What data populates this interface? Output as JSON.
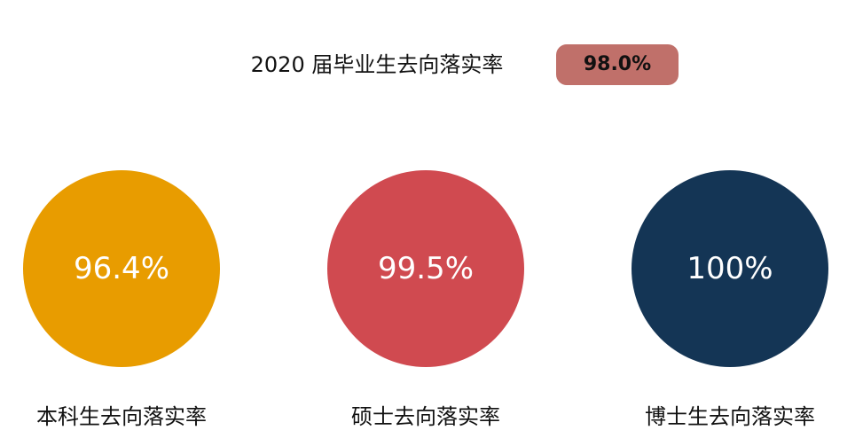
{
  "header": {
    "title": "2020 届毕业生去向落实率",
    "value": "98.0%"
  },
  "items": [
    {
      "value": "96.4%",
      "label": "本科生去向落实率",
      "color": "#e89c00"
    },
    {
      "value": "99.5%",
      "label": "硕士去向落实率",
      "color": "#d04a50"
    },
    {
      "value": "100%",
      "label": "博士生去向落实率",
      "color": "#143555"
    }
  ]
}
